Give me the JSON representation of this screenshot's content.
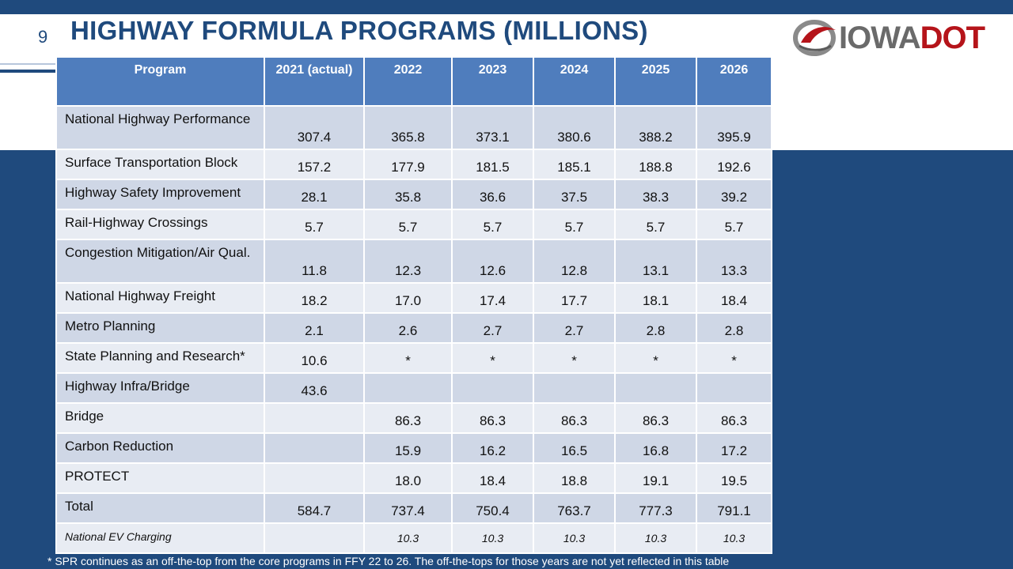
{
  "slide": {
    "number": "9",
    "title": "HIGHWAY FORMULA PROGRAMS (MILLIONS)"
  },
  "logo": {
    "text_main": "IOWA",
    "text_accent": "DOT",
    "colors": {
      "gray": "#6a6a6a",
      "red": "#b5141a"
    }
  },
  "colors": {
    "brand_blue": "#1f4a7d",
    "header_blue": "#4f7dbd",
    "row_dark": "#cfd7e6",
    "row_light": "#e8ecf3"
  },
  "table": {
    "headers": [
      "Program",
      "2021 (actual)",
      "2022",
      "2023",
      "2024",
      "2025",
      "2026"
    ],
    "rows": [
      {
        "program": "National Highway Performance",
        "values": [
          "307.4",
          "365.8",
          "373.1",
          "380.6",
          "388.2",
          "395.9"
        ]
      },
      {
        "program": "Surface Transportation Block",
        "values": [
          "157.2",
          "177.9",
          "181.5",
          "185.1",
          "188.8",
          "192.6"
        ]
      },
      {
        "program": "Highway Safety Improvement",
        "values": [
          "28.1",
          "35.8",
          "36.6",
          "37.5",
          "38.3",
          "39.2"
        ]
      },
      {
        "program": "Rail-Highway Crossings",
        "values": [
          "5.7",
          "5.7",
          "5.7",
          "5.7",
          "5.7",
          "5.7"
        ]
      },
      {
        "program": "Congestion Mitigation/Air Qual.",
        "values": [
          "11.8",
          "12.3",
          "12.6",
          "12.8",
          "13.1",
          "13.3"
        ]
      },
      {
        "program": "National Highway Freight",
        "values": [
          "18.2",
          "17.0",
          "17.4",
          "17.7",
          "18.1",
          "18.4"
        ]
      },
      {
        "program": "Metro Planning",
        "values": [
          "2.1",
          "2.6",
          "2.7",
          "2.7",
          "2.8",
          "2.8"
        ]
      },
      {
        "program": "State Planning and Research*",
        "values": [
          "10.6",
          "*",
          "*",
          "*",
          "*",
          "*"
        ]
      },
      {
        "program": "Highway Infra/Bridge",
        "values": [
          "43.6",
          "",
          "",
          "",
          "",
          ""
        ]
      },
      {
        "program": "Bridge",
        "values": [
          "",
          "86.3",
          "86.3",
          "86.3",
          "86.3",
          "86.3"
        ]
      },
      {
        "program": "Carbon Reduction",
        "values": [
          "",
          "15.9",
          "16.2",
          "16.5",
          "16.8",
          "17.2"
        ]
      },
      {
        "program": "PROTECT",
        "values": [
          "",
          "18.0",
          "18.4",
          "18.8",
          "19.1",
          "19.5"
        ]
      },
      {
        "program": "Total",
        "values": [
          "584.7",
          "737.4",
          "750.4",
          "763.7",
          "777.3",
          "791.1"
        ]
      },
      {
        "program": "National EV Charging",
        "values": [
          "",
          "10.3",
          "10.3",
          "10.3",
          "10.3",
          "10.3"
        ]
      }
    ]
  },
  "footnote": "* SPR continues as an off-the-top from the core programs in FFY 22 to 26. The off-the-tops for those years are not yet reflected in this table"
}
